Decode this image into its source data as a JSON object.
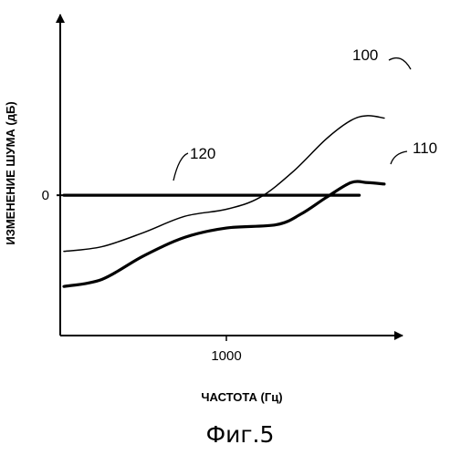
{
  "chart_data": {
    "type": "line",
    "xlabel": "ЧАСТОТА (Гц)",
    "ylabel": "ИЗМЕНЕНИЕ ШУМА (дБ)",
    "xticks": [
      {
        "value": 1000,
        "label": "1000"
      }
    ],
    "yticks": [
      {
        "value": 0,
        "label": "0"
      }
    ],
    "xlim": [
      0,
      2000
    ],
    "ylim": [
      -3.0,
      3.2
    ],
    "caption": "Фиг.5",
    "series": [
      {
        "name": "100",
        "color": "#000000",
        "weight": "thin",
        "points": [
          [
            0,
            -1.2
          ],
          [
            250,
            -1.1
          ],
          [
            500,
            -0.8
          ],
          [
            750,
            -0.45
          ],
          [
            1000,
            -0.3
          ],
          [
            1200,
            -0.05
          ],
          [
            1400,
            0.5
          ],
          [
            1600,
            1.2
          ],
          [
            1750,
            1.6
          ],
          [
            1850,
            1.7
          ],
          [
            1950,
            1.65
          ]
        ]
      },
      {
        "name": "110",
        "color": "#000000",
        "weight": "thick",
        "points": [
          [
            0,
            -1.95
          ],
          [
            250,
            -1.8
          ],
          [
            500,
            -1.3
          ],
          [
            750,
            -0.9
          ],
          [
            1000,
            -0.7
          ],
          [
            1300,
            -0.63
          ],
          [
            1450,
            -0.4
          ],
          [
            1600,
            -0.05
          ],
          [
            1750,
            0.27
          ],
          [
            1850,
            0.27
          ],
          [
            1950,
            0.24
          ]
        ]
      },
      {
        "name": "120",
        "color": "#000000",
        "weight": "thick",
        "points": [
          [
            0,
            0
          ],
          [
            1800,
            0
          ]
        ]
      }
    ],
    "callouts": [
      {
        "label": "100",
        "series": "100"
      },
      {
        "label": "110",
        "series": "110"
      },
      {
        "label": "120",
        "series": "120"
      }
    ],
    "grid": false,
    "legend": "none"
  }
}
